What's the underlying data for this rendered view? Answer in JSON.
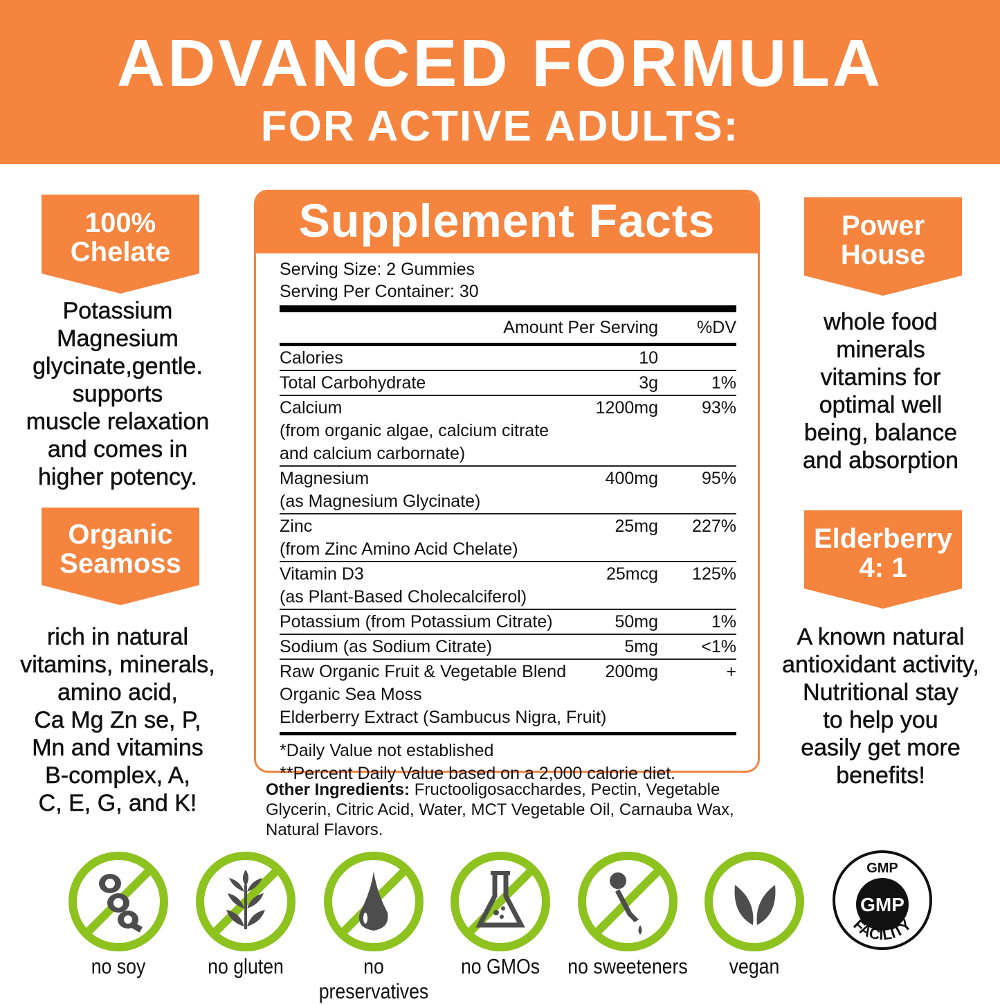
{
  "header": {
    "title": "ADVANCED FORMULA",
    "subtitle": "FOR ACTIVE ADULTS:"
  },
  "left": {
    "badge1": [
      "100%",
      "Chelate"
    ],
    "text1": [
      "Potassium",
      "Magnesium",
      "glycinate,gentle.",
      "supports",
      "muscle relaxation",
      "and comes in",
      "higher potency."
    ],
    "badge2": [
      "Organic",
      "Seamoss"
    ],
    "text2": [
      "rich in natural",
      "vitamins, minerals,",
      "amino acid,",
      "Ca Mg Zn se, P,",
      "Mn and vitamins",
      "B-complex, A,",
      "C, E, G, and K!"
    ]
  },
  "right": {
    "badge1": [
      "Power",
      "House"
    ],
    "text1": [
      "whole food",
      "minerals",
      "vitamins for",
      "optimal well",
      "being, balance",
      "and absorption"
    ],
    "badge2": [
      "Elderberry",
      "4: 1"
    ],
    "text2": [
      "A known natural",
      "antioxidant activity,",
      "Nutritional stay",
      "to help you",
      "easily get more",
      "benefits!"
    ]
  },
  "facts": {
    "title": "Supplement Facts",
    "serving_size": "Serving Size: 2 Gummies",
    "servings": "Serving Per Container: 30",
    "col_amount": "Amount Per Serving",
    "col_dv": "%DV",
    "rows": [
      {
        "name": "Calories",
        "amount": "10",
        "dv": "",
        "sub": []
      },
      {
        "name": "Total Carbohydrate",
        "amount": "3g",
        "dv": "1%",
        "sub": []
      },
      {
        "name": "Calcium",
        "amount": "1200mg",
        "dv": "93%",
        "sub": [
          "(from organic algae, calcium citrate",
          "and calcium carbornate)"
        ]
      },
      {
        "name": "Magnesium",
        "amount": "400mg",
        "dv": "95%",
        "sub": [
          "(as Magnesium Glycinate)"
        ]
      },
      {
        "name": "Zinc",
        "amount": "25mg",
        "dv": "227%",
        "sub": [
          "(from Zinc Amino Acid Chelate)"
        ]
      },
      {
        "name": "Vitamin D3",
        "amount": "25mcg",
        "dv": "125%",
        "sub": [
          "(as Plant-Based Cholecalciferol)"
        ]
      },
      {
        "name": "Potassium (from Potassium Citrate)",
        "amount": "50mg",
        "dv": "1%",
        "sub": []
      },
      {
        "name": "Sodium (as Sodium Citrate)",
        "amount": "5mg",
        "dv": "<1%",
        "sub": []
      },
      {
        "name": "Raw Organic Fruit & Vegetable Blend",
        "amount": "200mg",
        "dv": "+",
        "sub": [
          "Organic Sea Moss",
          "Elderberry Extract (Sambucus Nigra, Fruit)"
        ]
      }
    ],
    "footnote1": "*Daily Value not established",
    "footnote2": "**Percent Daily Value based on a 2,000 calorie diet."
  },
  "other": {
    "label": "Other Ingredients:",
    "text": " Fructooligosacchardes, Pectin, Vegetable Glycerin, Citric Acid, Water, MCT Vegetable Oil, Carnauba Wax, Natural Flavors."
  },
  "badges": [
    {
      "icon": "soybean-icon",
      "label": "no soy"
    },
    {
      "icon": "wheat-icon",
      "label": "no gluten"
    },
    {
      "icon": "drop-icon",
      "label": "no preservatives"
    },
    {
      "icon": "flask-icon",
      "label": "no GMOs"
    },
    {
      "icon": "dropper-icon",
      "label": "no sweeteners"
    },
    {
      "icon": "leaf-icon",
      "label": "vegan"
    }
  ],
  "gmp": {
    "top": "GMP",
    "center": "GMP",
    "bottom": "FACILITY"
  },
  "colors": {
    "accent": "#f5843f",
    "green": "#8dc21f",
    "icon_gray": "#4d4d4d"
  }
}
